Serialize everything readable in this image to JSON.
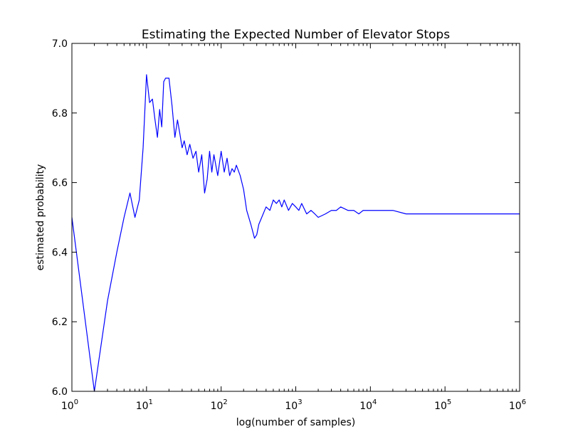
{
  "chart_data": {
    "type": "line",
    "title": "Estimating the Expected Number of Elevator Stops",
    "xlabel": "log(number of samples)",
    "ylabel": "estimated probability",
    "xscale": "log",
    "xlim": [
      1,
      1000000
    ],
    "ylim": [
      6.0,
      7.0
    ],
    "x_ticks": [
      {
        "value": 1,
        "base": "10",
        "exp": "0"
      },
      {
        "value": 10,
        "base": "10",
        "exp": "1"
      },
      {
        "value": 100,
        "base": "10",
        "exp": "2"
      },
      {
        "value": 1000,
        "base": "10",
        "exp": "3"
      },
      {
        "value": 10000,
        "base": "10",
        "exp": "4"
      },
      {
        "value": 100000,
        "base": "10",
        "exp": "5"
      },
      {
        "value": 1000000,
        "base": "10",
        "exp": "6"
      }
    ],
    "y_ticks": [
      "6.0",
      "6.2",
      "6.4",
      "6.6",
      "6.8",
      "7.0"
    ],
    "grid": false,
    "legend": "none",
    "series": [
      {
        "color": "#0000ff",
        "x": [
          1,
          2,
          3,
          4,
          5,
          6,
          7,
          8,
          9,
          10,
          11,
          12,
          13,
          14,
          15,
          16,
          17,
          18,
          20,
          22,
          24,
          26,
          28,
          30,
          32,
          35,
          38,
          42,
          46,
          50,
          55,
          60,
          65,
          70,
          75,
          80,
          90,
          100,
          110,
          120,
          130,
          140,
          150,
          160,
          180,
          200,
          220,
          250,
          280,
          300,
          320,
          350,
          400,
          450,
          500,
          550,
          600,
          650,
          700,
          800,
          900,
          1000,
          1100,
          1200,
          1400,
          1600,
          1800,
          2000,
          2500,
          3000,
          3500,
          4000,
          5000,
          6000,
          7000,
          8000,
          10000,
          15000,
          20000,
          30000,
          40000,
          50000,
          70000,
          100000,
          150000,
          200000,
          300000,
          500000,
          700000,
          1000000
        ],
        "y": [
          6.5,
          6.0,
          6.26,
          6.4,
          6.5,
          6.57,
          6.5,
          6.55,
          6.7,
          6.91,
          6.83,
          6.84,
          6.78,
          6.73,
          6.81,
          6.76,
          6.89,
          6.9,
          6.9,
          6.82,
          6.73,
          6.78,
          6.74,
          6.7,
          6.72,
          6.68,
          6.71,
          6.67,
          6.69,
          6.63,
          6.68,
          6.57,
          6.61,
          6.69,
          6.63,
          6.68,
          6.62,
          6.69,
          6.63,
          6.67,
          6.62,
          6.64,
          6.63,
          6.65,
          6.62,
          6.58,
          6.52,
          6.48,
          6.44,
          6.45,
          6.48,
          6.5,
          6.53,
          6.52,
          6.55,
          6.54,
          6.55,
          6.53,
          6.55,
          6.52,
          6.54,
          6.53,
          6.52,
          6.54,
          6.51,
          6.52,
          6.51,
          6.5,
          6.51,
          6.52,
          6.52,
          6.53,
          6.52,
          6.52,
          6.51,
          6.52,
          6.52,
          6.52,
          6.52,
          6.51,
          6.51,
          6.51,
          6.51,
          6.51,
          6.51,
          6.51,
          6.51,
          6.51,
          6.51,
          6.51
        ]
      }
    ]
  }
}
